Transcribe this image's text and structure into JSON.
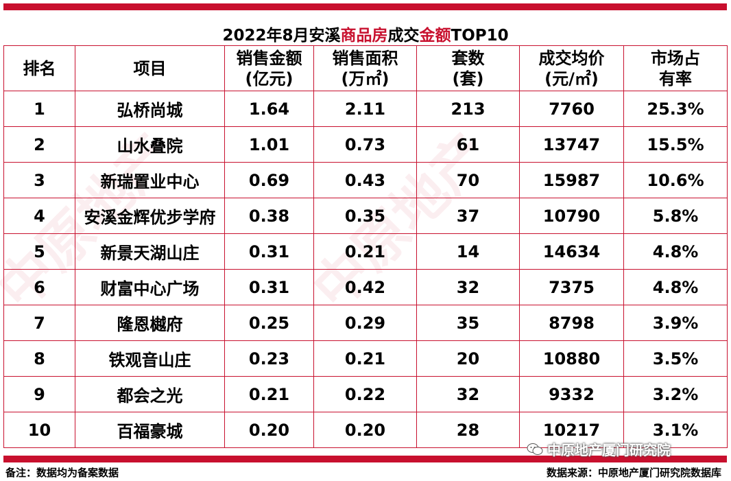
{
  "title": {
    "part1": "2022年8月安溪",
    "highlight1": "商品房",
    "part2": "成交",
    "highlight2": "金额",
    "part3": "TOP10"
  },
  "headers": [
    {
      "line1": "排名",
      "line2": ""
    },
    {
      "line1": "项目",
      "line2": ""
    },
    {
      "line1": "销售金额",
      "line2": "(亿元)"
    },
    {
      "line1": "销售面积",
      "line2": "(万㎡)"
    },
    {
      "line1": "套数",
      "line2": "(套)"
    },
    {
      "line1": "成交均价",
      "line2": "(元/㎡)"
    },
    {
      "line1": "市场占",
      "line2": "有率"
    }
  ],
  "rows": [
    [
      "1",
      "弘桥尚城",
      "1.64",
      "2.11",
      "213",
      "7760",
      "25.3%"
    ],
    [
      "2",
      "山水叠院",
      "1.01",
      "0.73",
      "61",
      "13747",
      "15.5%"
    ],
    [
      "3",
      "新瑞置业中心",
      "0.69",
      "0.43",
      "70",
      "15987",
      "10.6%"
    ],
    [
      "4",
      "安溪金辉优步学府",
      "0.38",
      "0.35",
      "37",
      "10790",
      "5.8%"
    ],
    [
      "5",
      "新景天湖山庄",
      "0.31",
      "0.21",
      "14",
      "14634",
      "4.8%"
    ],
    [
      "6",
      "财富中心广场",
      "0.31",
      "0.42",
      "32",
      "7375",
      "4.8%"
    ],
    [
      "7",
      "隆恩樾府",
      "0.25",
      "0.29",
      "35",
      "8798",
      "3.9%"
    ],
    [
      "8",
      "铁观音山庄",
      "0.23",
      "0.21",
      "20",
      "10880",
      "3.5%"
    ],
    [
      "9",
      "都会之光",
      "0.21",
      "0.22",
      "32",
      "9332",
      "3.2%"
    ],
    [
      "10",
      "百福豪城",
      "0.20",
      "0.20",
      "28",
      "10217",
      "3.1%"
    ]
  ],
  "footer": {
    "note": "备注：数据均为备案数据",
    "source": "数据来源：中原地产厦门研究院数据库"
  },
  "wechat_label": "中原地产厦门研究院",
  "watermark_text": "中原地产",
  "colors": {
    "accent": "#c8102e"
  }
}
